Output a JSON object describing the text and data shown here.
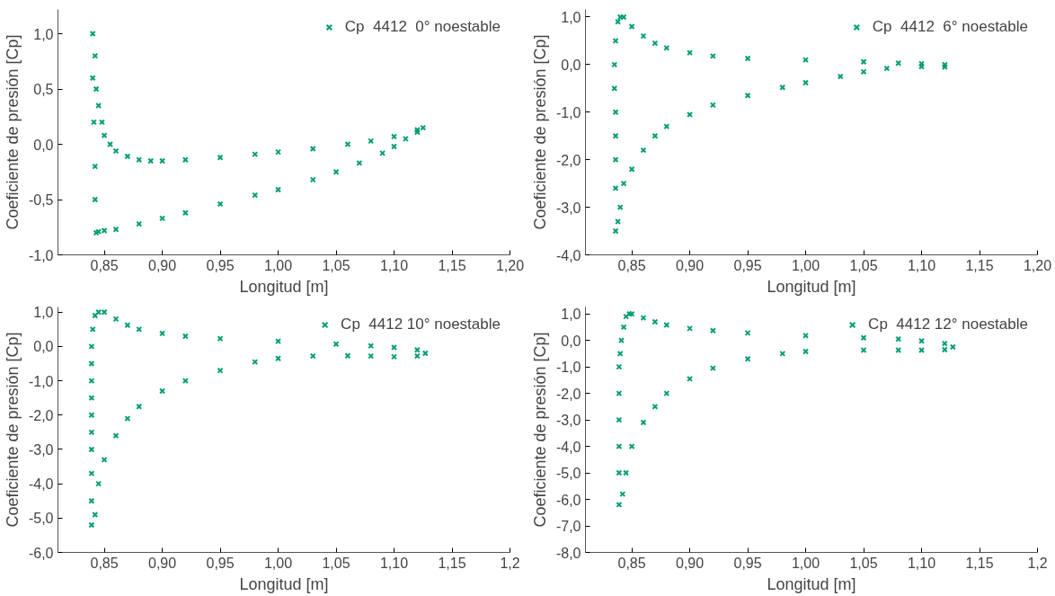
{
  "chart_data": [
    {
      "type": "scatter",
      "xlabel": "Longitud [m]",
      "ylabel": "Coeficiente de presión [Cp]",
      "marker": "cross",
      "legend": "top right",
      "grid": false,
      "xlim": [
        0.81,
        1.2
      ],
      "ylim": [
        -1.0,
        1.22
      ],
      "xticks": [
        {
          "value": 0.85,
          "label": "0,85"
        },
        {
          "value": 0.9,
          "label": "0,90"
        },
        {
          "value": 0.95,
          "label": "0,95"
        },
        {
          "value": 1.0,
          "label": "1,00"
        },
        {
          "value": 1.05,
          "label": "1,05"
        },
        {
          "value": 1.1,
          "label": "1,10"
        },
        {
          "value": 1.15,
          "label": "1,15"
        },
        {
          "value": 1.2,
          "label": "1,20"
        }
      ],
      "yticks": [
        {
          "value": -1.0,
          "label": "-1,0"
        },
        {
          "value": -0.5,
          "label": "-0,5"
        },
        {
          "value": 0.0,
          "label": "0,0"
        },
        {
          "value": 0.5,
          "label": "0,5"
        },
        {
          "value": 1.0,
          "label": "1,0"
        }
      ],
      "series": [
        {
          "name": "Cp  4412  0° noestable",
          "color": "#009e73",
          "x": [
            0.84,
            0.842,
            0.843,
            0.845,
            0.848,
            0.85,
            0.855,
            0.86,
            0.87,
            0.88,
            0.89,
            0.9,
            0.92,
            0.95,
            0.98,
            1.0,
            1.03,
            1.06,
            1.08,
            1.1,
            1.12,
            1.125,
            0.84,
            0.841,
            0.842,
            0.842,
            0.843,
            0.845,
            0.85,
            0.86,
            0.88,
            0.9,
            0.92,
            0.95,
            0.98,
            1.0,
            1.03,
            1.05,
            1.07,
            1.09,
            1.1,
            1.11,
            1.12
          ],
          "values": [
            1.0,
            0.8,
            0.5,
            0.35,
            0.2,
            0.08,
            0.0,
            -0.06,
            -0.11,
            -0.14,
            -0.15,
            -0.15,
            -0.14,
            -0.12,
            -0.09,
            -0.07,
            -0.04,
            0.0,
            0.03,
            0.07,
            0.13,
            0.15,
            0.6,
            0.2,
            -0.2,
            -0.5,
            -0.8,
            -0.79,
            -0.78,
            -0.77,
            -0.72,
            -0.67,
            -0.62,
            -0.54,
            -0.46,
            -0.41,
            -0.32,
            -0.25,
            -0.17,
            -0.08,
            -0.02,
            0.05,
            0.11
          ]
        }
      ]
    },
    {
      "type": "scatter",
      "xlabel": "Longitud [m]",
      "ylabel": "Coeficiente de presión [Cp]",
      "marker": "cross",
      "legend": "top right",
      "grid": false,
      "xlim": [
        0.81,
        1.2
      ],
      "ylim": [
        -4.0,
        1.16
      ],
      "xticks": [
        {
          "value": 0.85,
          "label": "0,85"
        },
        {
          "value": 0.9,
          "label": "0,90"
        },
        {
          "value": 0.95,
          "label": "0,95"
        },
        {
          "value": 1.0,
          "label": "1,00"
        },
        {
          "value": 1.05,
          "label": "1,05"
        },
        {
          "value": 1.1,
          "label": "1,10"
        },
        {
          "value": 1.15,
          "label": "1,15"
        },
        {
          "value": 1.2,
          "label": "1,20"
        }
      ],
      "yticks": [
        {
          "value": -4.0,
          "label": "-4,0"
        },
        {
          "value": -3.0,
          "label": "-3,0"
        },
        {
          "value": -2.0,
          "label": "-2,0"
        },
        {
          "value": -1.0,
          "label": "-1,0"
        },
        {
          "value": 0.0,
          "label": "0,0"
        },
        {
          "value": 1.0,
          "label": "1,0"
        }
      ],
      "series": [
        {
          "name": "Cp  4412  6° noestable",
          "color": "#009e73",
          "x": [
            0.836,
            0.838,
            0.84,
            0.843,
            0.85,
            0.86,
            0.87,
            0.88,
            0.9,
            0.92,
            0.95,
            1.0,
            1.05,
            1.08,
            1.1,
            1.12,
            0.835,
            0.835,
            0.836,
            0.836,
            0.836,
            0.836,
            0.836,
            0.838,
            0.84,
            0.843,
            0.85,
            0.86,
            0.87,
            0.88,
            0.9,
            0.92,
            0.95,
            0.98,
            1.0,
            1.03,
            1.05,
            1.07,
            1.1,
            1.12
          ],
          "values": [
            0.5,
            0.9,
            1.0,
            1.0,
            0.8,
            0.6,
            0.45,
            0.35,
            0.25,
            0.18,
            0.13,
            0.1,
            0.06,
            0.03,
            0.02,
            0.0,
            0.0,
            -0.5,
            -1.0,
            -1.5,
            -2.0,
            -2.6,
            -3.5,
            -3.3,
            -3.0,
            -2.5,
            -2.2,
            -1.8,
            -1.5,
            -1.3,
            -1.05,
            -0.85,
            -0.65,
            -0.48,
            -0.38,
            -0.25,
            -0.15,
            -0.08,
            -0.04,
            -0.05
          ]
        }
      ]
    },
    {
      "type": "scatter",
      "xlabel": "Longitud [m]",
      "ylabel": "Coeficiente de presión [Cp]",
      "marker": "cross",
      "legend": "top right",
      "grid": false,
      "xlim": [
        0.81,
        1.2
      ],
      "ylim": [
        -6.0,
        1.15
      ],
      "xticks": [
        {
          "value": 0.85,
          "label": "0,85"
        },
        {
          "value": 0.9,
          "label": "0,90"
        },
        {
          "value": 0.95,
          "label": "0,95"
        },
        {
          "value": 1.0,
          "label": "1,00"
        },
        {
          "value": 1.05,
          "label": "1,05"
        },
        {
          "value": 1.1,
          "label": "1,10"
        },
        {
          "value": 1.15,
          "label": "1,15"
        },
        {
          "value": 1.2,
          "label": "1,2"
        }
      ],
      "yticks": [
        {
          "value": -6.0,
          "label": "-6,0"
        },
        {
          "value": -5.0,
          "label": "-5,0"
        },
        {
          "value": -4.0,
          "label": "-4,0"
        },
        {
          "value": -3.0,
          "label": "-3,0"
        },
        {
          "value": -2.0,
          "label": "-2,0"
        },
        {
          "value": -1.0,
          "label": "-1,0"
        },
        {
          "value": 0.0,
          "label": "0,0"
        },
        {
          "value": 1.0,
          "label": "1,0"
        }
      ],
      "series": [
        {
          "name": "Cp  4412 10° noestable",
          "color": "#009e73",
          "x": [
            0.839,
            0.84,
            0.842,
            0.845,
            0.85,
            0.86,
            0.87,
            0.88,
            0.9,
            0.92,
            0.95,
            1.0,
            1.05,
            1.08,
            1.1,
            1.12,
            1.127,
            0.839,
            0.839,
            0.839,
            0.839,
            0.839,
            0.839,
            0.839,
            0.839,
            0.839,
            0.842,
            0.845,
            0.85,
            0.86,
            0.87,
            0.88,
            0.9,
            0.92,
            0.95,
            0.98,
            1.0,
            1.03,
            1.06,
            1.08,
            1.1,
            1.12
          ],
          "values": [
            0.0,
            0.5,
            0.9,
            1.0,
            1.0,
            0.8,
            0.62,
            0.5,
            0.38,
            0.3,
            0.23,
            0.15,
            0.07,
            0.02,
            -0.03,
            -0.1,
            -0.2,
            -0.5,
            -1.0,
            -1.5,
            -2.0,
            -2.5,
            -3.0,
            -3.7,
            -4.5,
            -5.2,
            -4.9,
            -4.0,
            -3.3,
            -2.6,
            -2.1,
            -1.75,
            -1.3,
            -1.0,
            -0.7,
            -0.45,
            -0.35,
            -0.28,
            -0.27,
            -0.28,
            -0.3,
            -0.28
          ]
        }
      ]
    },
    {
      "type": "scatter",
      "xlabel": "Longitud [m]",
      "ylabel": "Coeficiente de presión [Cp]",
      "marker": "cross",
      "legend": "top right",
      "grid": false,
      "xlim": [
        0.81,
        1.2
      ],
      "ylim": [
        -8.0,
        1.26
      ],
      "xticks": [
        {
          "value": 0.85,
          "label": "0,85"
        },
        {
          "value": 0.9,
          "label": "0,90"
        },
        {
          "value": 0.95,
          "label": "0,95"
        },
        {
          "value": 1.0,
          "label": "1,00"
        },
        {
          "value": 1.05,
          "label": "1,05"
        },
        {
          "value": 1.1,
          "label": "1,10"
        },
        {
          "value": 1.15,
          "label": "1,15"
        },
        {
          "value": 1.2,
          "label": "1,2"
        }
      ],
      "yticks": [
        {
          "value": -8.0,
          "label": "-8,0"
        },
        {
          "value": -7.0,
          "label": "-7,0"
        },
        {
          "value": -6.0,
          "label": "-6,0"
        },
        {
          "value": -5.0,
          "label": "-5,0"
        },
        {
          "value": -4.0,
          "label": "-4,0"
        },
        {
          "value": -3.0,
          "label": "-3,0"
        },
        {
          "value": -2.0,
          "label": "-2,0"
        },
        {
          "value": -1.0,
          "label": "-1,0"
        },
        {
          "value": 0.0,
          "label": "0,0"
        },
        {
          "value": 1.0,
          "label": "1,0"
        }
      ],
      "series": [
        {
          "name": "Cp  4412 12° noestable",
          "color": "#009e73",
          "x": [
            0.84,
            0.841,
            0.843,
            0.845,
            0.848,
            0.85,
            0.86,
            0.87,
            0.88,
            0.9,
            0.92,
            0.95,
            1.0,
            1.05,
            1.08,
            1.1,
            1.12,
            1.127,
            0.839,
            0.839,
            0.839,
            0.839,
            0.839,
            0.839,
            0.842,
            0.845,
            0.85,
            0.86,
            0.87,
            0.88,
            0.9,
            0.92,
            0.95,
            0.98,
            1.0,
            1.05,
            1.08,
            1.1,
            1.12
          ],
          "values": [
            -0.5,
            0.0,
            0.5,
            0.9,
            1.0,
            1.0,
            0.85,
            0.7,
            0.58,
            0.45,
            0.37,
            0.28,
            0.18,
            0.1,
            0.05,
            -0.02,
            -0.12,
            -0.25,
            -1.0,
            -2.0,
            -3.0,
            -4.0,
            -5.0,
            -6.2,
            -5.8,
            -5.0,
            -4.0,
            -3.1,
            -2.5,
            -2.0,
            -1.45,
            -1.05,
            -0.7,
            -0.5,
            -0.42,
            -0.37,
            -0.37,
            -0.37,
            -0.35
          ]
        }
      ]
    }
  ]
}
